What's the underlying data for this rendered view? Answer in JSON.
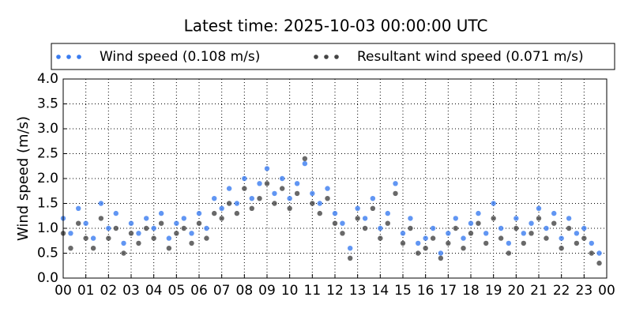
{
  "chart_data": {
    "type": "scatter",
    "title": "Latest time: 2025-10-03 00:00:00 UTC",
    "y_label": "Wind speed (m/s)",
    "x": [
      0,
      0.33,
      0.67,
      1,
      1.33,
      1.67,
      2,
      2.33,
      2.67,
      3,
      3.33,
      3.67,
      4,
      4.33,
      4.67,
      5,
      5.33,
      5.67,
      6,
      6.33,
      6.67,
      7,
      7.33,
      7.67,
      8,
      8.33,
      8.67,
      9,
      9.33,
      9.67,
      10,
      10.33,
      10.67,
      11,
      11.33,
      11.67,
      12,
      12.33,
      12.67,
      13,
      13.33,
      13.67,
      14,
      14.33,
      14.67,
      15,
      15.33,
      15.67,
      16,
      16.33,
      16.67,
      17,
      17.33,
      17.67,
      18,
      18.33,
      18.67,
      19,
      19.33,
      19.67,
      20,
      20.33,
      20.67,
      21,
      21.33,
      21.67,
      22,
      22.33,
      22.67,
      23,
      23.33,
      23.67
    ],
    "series": [
      {
        "name": "Wind speed (0.108 m/s)",
        "color": "#3a7cf0",
        "values": [
          1.2,
          0.9,
          1.4,
          1.1,
          0.8,
          1.5,
          1.0,
          1.3,
          0.7,
          1.1,
          0.9,
          1.2,
          1.0,
          1.3,
          0.8,
          1.1,
          1.2,
          0.9,
          1.3,
          1.0,
          1.6,
          1.4,
          1.8,
          1.5,
          2.0,
          1.6,
          1.9,
          2.2,
          1.7,
          2.0,
          1.6,
          1.9,
          2.3,
          1.7,
          1.5,
          1.8,
          1.3,
          1.1,
          0.6,
          1.4,
          1.2,
          1.6,
          1.0,
          1.3,
          1.9,
          0.9,
          1.2,
          0.7,
          0.8,
          1.0,
          0.5,
          0.9,
          1.2,
          0.8,
          1.1,
          1.3,
          0.9,
          1.5,
          1.0,
          0.7,
          1.2,
          0.9,
          1.1,
          1.4,
          1.0,
          1.3,
          0.8,
          1.2,
          0.9,
          1.0,
          0.7,
          0.5
        ]
      },
      {
        "name": "Resultant wind speed (0.071 m/s)",
        "color": "#444444",
        "values": [
          0.9,
          0.6,
          1.1,
          0.8,
          0.6,
          1.2,
          0.8,
          1.0,
          0.5,
          0.9,
          0.7,
          1.0,
          0.8,
          1.1,
          0.6,
          0.9,
          1.0,
          0.7,
          1.1,
          0.8,
          1.3,
          1.2,
          1.5,
          1.3,
          1.8,
          1.4,
          1.6,
          1.9,
          1.5,
          1.8,
          1.4,
          1.7,
          2.4,
          1.5,
          1.3,
          1.6,
          1.1,
          0.9,
          0.4,
          1.2,
          1.0,
          1.4,
          0.8,
          1.1,
          1.7,
          0.7,
          1.0,
          0.5,
          0.6,
          0.8,
          0.4,
          0.7,
          1.0,
          0.6,
          0.9,
          1.1,
          0.7,
          1.2,
          0.8,
          0.5,
          1.0,
          0.7,
          0.9,
          1.2,
          0.8,
          1.1,
          0.6,
          1.0,
          0.7,
          0.8,
          0.5,
          0.3
        ]
      }
    ],
    "xlim": [
      0,
      24
    ],
    "xticks": [
      {
        "value": 0,
        "label": "00"
      },
      {
        "value": 1,
        "label": "01"
      },
      {
        "value": 2,
        "label": "02"
      },
      {
        "value": 3,
        "label": "03"
      },
      {
        "value": 4,
        "label": "04"
      },
      {
        "value": 5,
        "label": "05"
      },
      {
        "value": 6,
        "label": "06"
      },
      {
        "value": 7,
        "label": "07"
      },
      {
        "value": 8,
        "label": "08"
      },
      {
        "value": 9,
        "label": "09"
      },
      10,
      11,
      12,
      13,
      14,
      15,
      16,
      17,
      18,
      19,
      20,
      21,
      22,
      23,
      {
        "value": 24,
        "label": "00"
      }
    ],
    "ylim": [
      0,
      4
    ],
    "yticks": [
      {
        "value": 0,
        "label": "0.0"
      },
      {
        "value": 0.5,
        "label": "0.5"
      },
      {
        "value": 1,
        "label": "1.0"
      },
      {
        "value": 1.5,
        "label": "1.5"
      },
      {
        "value": 2,
        "label": "2.0"
      },
      {
        "value": 2.5,
        "label": "2.5"
      },
      {
        "value": 3,
        "label": "3.0"
      },
      {
        "value": 3.5,
        "label": "3.5"
      },
      {
        "value": 4,
        "label": "4.0"
      }
    ],
    "grid": true
  }
}
